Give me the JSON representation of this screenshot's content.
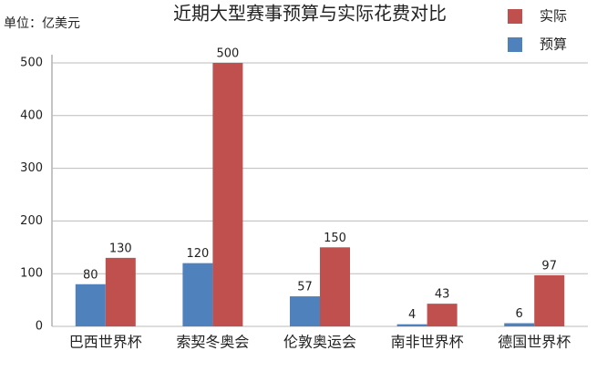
{
  "chart_data": {
    "type": "bar",
    "title": "近期大型赛事预算与实际花费对比",
    "unit_label": "单位：亿美元",
    "categories": [
      "巴西世界杯",
      "索契冬奥会",
      "伦敦奥运会",
      "南非世界杯",
      "德国世界杯"
    ],
    "series": [
      {
        "name": "预算",
        "color": "#4f81bd",
        "values": [
          80,
          120,
          57,
          4,
          6
        ]
      },
      {
        "name": "实际",
        "color": "#c0504d",
        "values": [
          130,
          500,
          150,
          43,
          97
        ]
      }
    ],
    "ylim": [
      0,
      500
    ],
    "yticks": [
      0,
      100,
      200,
      300,
      400,
      500
    ],
    "grid": true
  }
}
